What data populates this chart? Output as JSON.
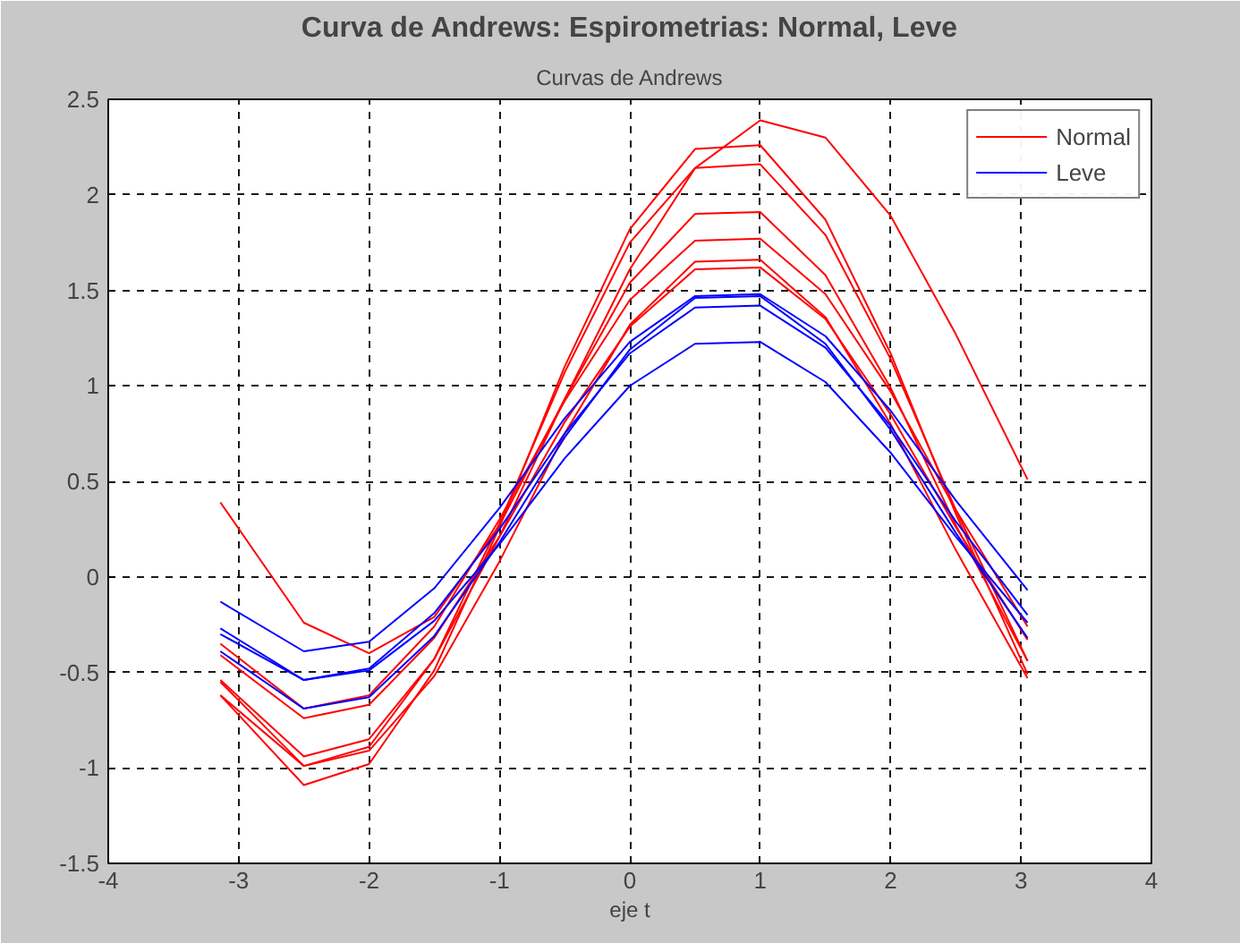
{
  "chart_data": {
    "type": "line",
    "title": "Curva de Andrews: Espirometrias: Normal, Leve",
    "subtitle": "Curvas de Andrews",
    "xlabel": "eje t",
    "x": [
      -3.14,
      -2.5,
      -2,
      -1.5,
      -1,
      -0.5,
      0,
      0.5,
      1,
      1.5,
      2,
      2.5,
      3.05
    ],
    "series": [
      {
        "name": "Normal",
        "color": "#ff0000",
        "values": [
          -0.41,
          -0.74,
          -0.67,
          -0.32,
          0.21,
          0.81,
          1.31,
          1.61,
          1.62,
          1.35,
          0.85,
          0.26,
          -0.33
        ]
      },
      {
        "color": "#ff0000",
        "values": [
          -0.55,
          -0.99,
          -0.89,
          -0.43,
          0.28,
          1.07,
          1.75,
          2.14,
          2.16,
          1.79,
          1.14,
          0.35,
          -0.44
        ]
      },
      {
        "color": "#ff0000",
        "values": [
          -0.62,
          -1.09,
          -0.98,
          -0.49,
          0.26,
          1.1,
          1.82,
          2.24,
          2.26,
          1.87,
          1.17,
          0.33,
          -0.51
        ]
      },
      {
        "color": "#ff0000",
        "values": [
          0.39,
          -0.24,
          -0.4,
          -0.21,
          0.27,
          0.93,
          1.61,
          2.14,
          2.39,
          2.3,
          1.89,
          1.27,
          0.51
        ]
      },
      {
        "color": "#ff0000",
        "values": [
          -0.54,
          -0.94,
          -0.85,
          -0.43,
          0.21,
          0.93,
          1.54,
          1.9,
          1.91,
          1.58,
          0.99,
          0.27,
          -0.44
        ]
      },
      {
        "color": "#ff0000",
        "values": [
          -0.62,
          -0.99,
          -0.91,
          -0.52,
          0.08,
          0.75,
          1.32,
          1.65,
          1.66,
          1.36,
          0.8,
          0.14,
          -0.53
        ]
      },
      {
        "color": "#ff0000",
        "values": [
          -0.35,
          -0.69,
          -0.62,
          -0.26,
          0.3,
          0.92,
          1.45,
          1.76,
          1.77,
          1.48,
          0.97,
          0.35,
          -0.26
        ]
      },
      {
        "name": "Leve",
        "color": "#0000ff",
        "values": [
          -0.27,
          -0.54,
          -0.48,
          -0.19,
          0.25,
          0.75,
          1.17,
          1.41,
          1.42,
          1.2,
          0.79,
          0.29,
          -0.2
        ]
      },
      {
        "color": "#0000ff",
        "values": [
          -0.3,
          -0.54,
          -0.49,
          -0.23,
          0.17,
          0.62,
          1.0,
          1.22,
          1.23,
          1.02,
          0.65,
          0.21,
          -0.24
        ]
      },
      {
        "color": "#0000ff",
        "values": [
          -0.13,
          -0.39,
          -0.34,
          -0.06,
          0.36,
          0.83,
          1.23,
          1.47,
          1.48,
          1.26,
          0.87,
          0.4,
          -0.07
        ]
      },
      {
        "color": "#0000ff",
        "values": [
          -0.39,
          -0.69,
          -0.63,
          -0.31,
          0.18,
          0.73,
          1.19,
          1.46,
          1.47,
          1.22,
          0.77,
          0.23,
          -0.32
        ]
      }
    ],
    "xlim": [
      -4,
      4
    ],
    "xticks": [
      -4,
      -3,
      -2,
      -1,
      0,
      1,
      2,
      3,
      4
    ],
    "ylim": [
      -1.5,
      2.5
    ],
    "yticks": [
      -1.5,
      -1,
      -0.5,
      0,
      0.5,
      1,
      1.5,
      2,
      2.5
    ],
    "grid": true,
    "legend": "top right",
    "line_style": "solid",
    "marker": "none"
  }
}
